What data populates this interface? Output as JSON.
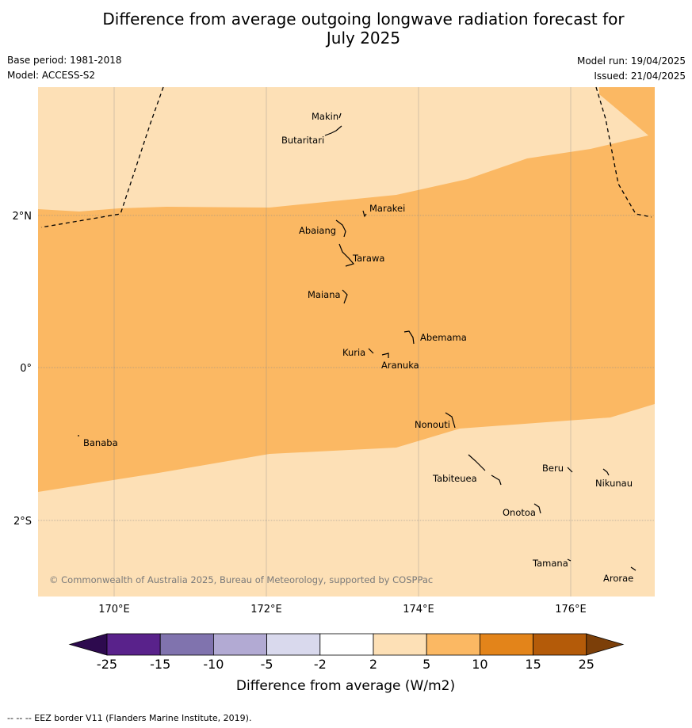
{
  "title_line1": "Difference from average outgoing longwave radiation forecast for",
  "title_line2": "July 2025",
  "base_period": "Base period: 1981-2018",
  "model": "Model: ACCESS-S2",
  "model_run": "Model run: 19/04/2025",
  "issued": "Issued: 21/04/2025",
  "copyright": "© Commonwealth of Australia 2025, Bureau of Meteorology, supported by COSPPac",
  "axes": {
    "lon_labels": [
      "170°E",
      "172°E",
      "174°E",
      "176°E"
    ],
    "lat_labels": [
      "2°N",
      "0°",
      "2°S"
    ]
  },
  "places": [
    {
      "name": "Makin"
    },
    {
      "name": "Butaritari"
    },
    {
      "name": "Marakei"
    },
    {
      "name": "Abaiang"
    },
    {
      "name": "Tarawa"
    },
    {
      "name": "Maiana"
    },
    {
      "name": "Abemama"
    },
    {
      "name": "Kuria"
    },
    {
      "name": "Aranuka"
    },
    {
      "name": "Nonouti"
    },
    {
      "name": "Banaba"
    },
    {
      "name": "Tabiteuea"
    },
    {
      "name": "Beru"
    },
    {
      "name": "Nikunau"
    },
    {
      "name": "Onotoa"
    },
    {
      "name": "Tamana"
    },
    {
      "name": "Arorae"
    }
  ],
  "legend": {
    "title": "Difference from average (W/m2)",
    "ticks": [
      "-25",
      "-15",
      "-10",
      "-5",
      "-2",
      "2",
      "5",
      "10",
      "15",
      "25"
    ],
    "colors": {
      "under": "#2d0a4e",
      "bins": [
        "#59228b",
        "#8073ae",
        "#b2aad3",
        "#d9d9ed",
        "#ffffff",
        "#fde0b6",
        "#fbb863",
        "#e3841a",
        "#b45b09"
      ],
      "over": "#7c3f09"
    }
  },
  "map_colors": {
    "band_2_to_5": "#fde0b6",
    "band_5_to_10": "#fbb863"
  },
  "footer": "--  --  -- EEZ border V11 (Flanders Marine Institute, 2019)."
}
